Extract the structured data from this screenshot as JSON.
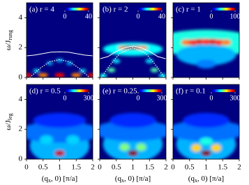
{
  "chart_data": [
    {
      "type": "heatmap",
      "title": "(a) r = 4",
      "clim": [
        0,
        40
      ],
      "cticks": [
        0,
        40
      ],
      "xlim": [
        0,
        2
      ],
      "xticks": [
        0,
        0.5,
        1,
        1.5,
        2
      ],
      "ylim": [
        0,
        5
      ],
      "yticks": [
        0,
        2,
        4
      ],
      "ylabel": [
        "ω/J",
        "rung"
      ],
      "spots": {
        "x": [
          0,
          0.5,
          1,
          1.5,
          2,
          0.3,
          0.7,
          1.3,
          1.7,
          1
        ],
        "y": [
          0.15,
          0.15,
          0.15,
          0.15,
          0.15,
          0.45,
          0.95,
          0.95,
          0.45,
          1.15
        ],
        "width": [
          0.15,
          0.15,
          0.15,
          0.15,
          0.15,
          0.1,
          0.1,
          0.1,
          0.1,
          0.12
        ],
        "height": [
          0.15,
          0.15,
          0.15,
          0.15,
          0.15,
          0.12,
          0.12,
          0.12,
          0.12,
          0.12
        ],
        "values": [
          35,
          30,
          35,
          30,
          35,
          14,
          12,
          12,
          14,
          12
        ]
      },
      "lines": [
        {
          "style": "solid",
          "x": [
            0,
            0.25,
            0.5,
            0.75,
            1,
            1.25,
            1.5,
            1.75,
            2
          ],
          "y": [
            1.45,
            1.5,
            1.6,
            1.7,
            1.72,
            1.7,
            1.6,
            1.5,
            1.45
          ]
        },
        {
          "style": "dotted",
          "x": [
            0.1,
            0.4,
            0.7,
            1,
            1.3,
            1.6,
            1.9
          ],
          "y": [
            0,
            0.6,
            1.05,
            1.2,
            1.05,
            0.6,
            0
          ]
        }
      ]
    },
    {
      "type": "heatmap",
      "title": "(b) r = 2",
      "clim": [
        0,
        40
      ],
      "cticks": [
        0,
        40
      ],
      "xlim": [
        0,
        2
      ],
      "xticks": [
        0,
        0.5,
        1,
        1.5,
        2
      ],
      "ylim": [
        0,
        5
      ],
      "yticks": [
        0,
        2,
        4
      ],
      "spots": {
        "x": [
          1,
          0.7,
          0.85,
          1,
          1.15,
          1.3,
          0.5,
          1.5,
          0.35,
          1.65,
          0.1,
          1.9
        ],
        "y": [
          1.9,
          2.0,
          2.0,
          2.0,
          2.0,
          2.0,
          1.1,
          1.1,
          0.5,
          0.5,
          0.1,
          0.1
        ],
        "width": [
          0.9,
          0.15,
          0.15,
          0.15,
          0.15,
          0.15,
          0.12,
          0.12,
          0.12,
          0.12,
          0.12,
          0.12
        ],
        "height": [
          0.45,
          0.12,
          0.12,
          0.12,
          0.12,
          0.12,
          0.15,
          0.15,
          0.15,
          0.15,
          0.15,
          0.15
        ],
        "values": [
          15,
          30,
          38,
          40,
          38,
          30,
          14,
          14,
          18,
          18,
          15,
          15
        ]
      },
      "lines": [
        {
          "style": "solid",
          "x": [
            0,
            0.25,
            0.5,
            0.75,
            1,
            1.25,
            1.5,
            1.75,
            2
          ],
          "y": [
            1.25,
            1.4,
            1.75,
            2.0,
            2.1,
            2.0,
            1.75,
            1.4,
            1.25
          ]
        },
        {
          "style": "dotted",
          "x": [
            0.05,
            0.3,
            0.6,
            1,
            1.4,
            1.7,
            1.95
          ],
          "y": [
            0,
            0.8,
            1.6,
            2.0,
            1.6,
            0.8,
            0
          ]
        }
      ]
    },
    {
      "type": "heatmap",
      "title": "(c) r = 1",
      "clim": [
        0,
        100
      ],
      "cticks": [
        0,
        100
      ],
      "xlim": [
        0,
        2
      ],
      "xticks": [
        0,
        0.5,
        1,
        1.5,
        2
      ],
      "ylim": [
        0,
        5
      ],
      "yticks": [
        0,
        2,
        4
      ],
      "spots": {
        "x": [
          1,
          1,
          1,
          0.4,
          0.6,
          0.8,
          1,
          1.2,
          1.4,
          1.6
        ],
        "y": [
          2.3,
          1.5,
          0.9,
          2.35,
          2.35,
          2.4,
          2.4,
          2.4,
          2.35,
          2.35
        ],
        "width": [
          1.6,
          0.9,
          0.3,
          0.15,
          0.15,
          0.15,
          0.15,
          0.15,
          0.15,
          0.15
        ],
        "height": [
          0.9,
          0.7,
          0.3,
          0.2,
          0.2,
          0.2,
          0.2,
          0.2,
          0.2,
          0.2
        ],
        "values": [
          40,
          30,
          25,
          75,
          85,
          90,
          85,
          90,
          85,
          75
        ]
      }
    },
    {
      "type": "heatmap",
      "title": "(d) r = 0.5",
      "clim": [
        0,
        300
      ],
      "cticks": [
        0,
        300
      ],
      "xlim": [
        0,
        2
      ],
      "xticks": [
        0,
        0.5,
        1,
        1.5,
        2
      ],
      "ylim": [
        0,
        5
      ],
      "yticks": [
        0,
        2,
        4
      ],
      "ylabel": [
        "ω/J",
        "leg"
      ],
      "xlabel": [
        "(q",
        "x",
        ", 0) [π/a]"
      ],
      "spots": {
        "x": [
          1,
          1,
          1,
          0.6,
          1.4,
          1
        ],
        "y": [
          0.9,
          1.8,
          2.6,
          1.3,
          1.3,
          0.4
        ],
        "width": [
          0.9,
          1.3,
          0.8,
          0.2,
          0.2,
          0.15
        ],
        "height": [
          1.2,
          0.7,
          0.5,
          0.3,
          0.3,
          0.2
        ],
        "values": [
          90,
          70,
          50,
          100,
          100,
          280
        ]
      }
    },
    {
      "type": "heatmap",
      "title": "(e) r = 0.25",
      "clim": [
        0,
        300
      ],
      "cticks": [
        0,
        300
      ],
      "xlim": [
        0,
        2
      ],
      "xticks": [
        0,
        0.5,
        1,
        1.5,
        2
      ],
      "ylim": [
        0,
        5
      ],
      "yticks": [
        0,
        2,
        4
      ],
      "xlabel": [
        "(q",
        "x",
        ", 0) [π/a]"
      ],
      "spots": {
        "x": [
          1,
          1,
          1,
          0.75,
          1.25,
          1
        ],
        "y": [
          1.0,
          1.9,
          2.6,
          0.8,
          0.8,
          0.4
        ],
        "width": [
          0.9,
          1.2,
          0.7,
          0.15,
          0.15,
          0.15
        ],
        "height": [
          1.2,
          0.7,
          0.5,
          0.25,
          0.25,
          0.2
        ],
        "values": [
          90,
          70,
          50,
          150,
          150,
          300
        ]
      }
    },
    {
      "type": "heatmap",
      "title": "(f) r = 0.1",
      "clim": [
        0,
        300
      ],
      "cticks": [
        0,
        300
      ],
      "xlim": [
        0,
        2
      ],
      "xticks": [
        0,
        0.5,
        1,
        1.5,
        2
      ],
      "ylim": [
        0,
        5
      ],
      "yticks": [
        0,
        2,
        4
      ],
      "xlabel": [
        "(q",
        "x",
        ", 0) [π/a]"
      ],
      "spots": {
        "x": [
          1,
          1,
          1,
          0.7,
          1.3,
          1,
          1
        ],
        "y": [
          1.0,
          1.9,
          2.6,
          0.75,
          0.75,
          1.2,
          0.4
        ],
        "width": [
          0.9,
          1.2,
          0.7,
          0.15,
          0.15,
          0.2,
          0.15
        ],
        "height": [
          1.2,
          0.7,
          0.5,
          0.25,
          0.25,
          0.25,
          0.2
        ],
        "values": [
          90,
          70,
          50,
          200,
          200,
          120,
          300
        ]
      }
    }
  ]
}
